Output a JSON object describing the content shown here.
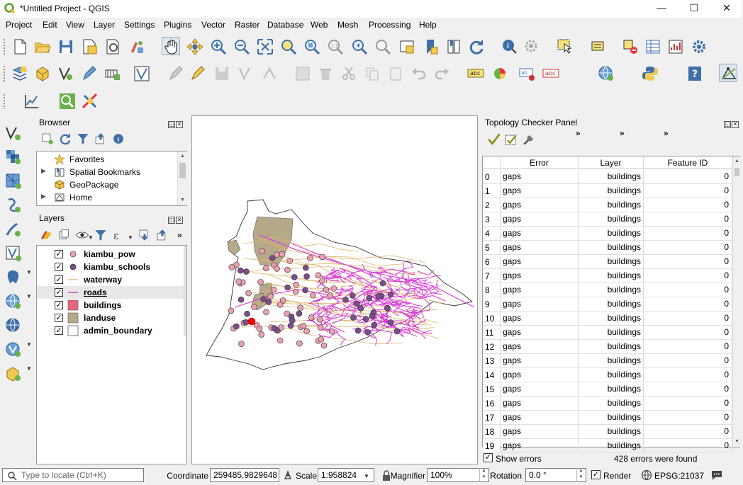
{
  "window": {
    "title": "*Untitled Project - QGIS",
    "minimize": "—",
    "maximize": "☐",
    "close": "✕"
  },
  "menu": [
    "Project",
    "Edit",
    "View",
    "Layer",
    "Settings",
    "Plugins",
    "Vector",
    "Raster",
    "Database",
    "Web",
    "Mesh",
    "Processing",
    "Help"
  ],
  "toolbar_overflow": "»",
  "browser": {
    "title": "Browser",
    "items": [
      {
        "label": "Favorites",
        "icon": "star-icon",
        "expandable": false
      },
      {
        "label": "Spatial Bookmarks",
        "icon": "bookmark-icon",
        "expandable": true
      },
      {
        "label": "GeoPackage",
        "icon": "geopackage-icon",
        "expandable": false
      },
      {
        "label": "Home",
        "icon": "home-icon",
        "expandable": true
      }
    ]
  },
  "layers": {
    "title": "Layers",
    "items": [
      {
        "label": "kiambu_pow",
        "checked": true,
        "symbol": "point",
        "color": "#e8a0b0"
      },
      {
        "label": "kiambu_schools",
        "checked": true,
        "symbol": "point",
        "color": "#7a4e8a"
      },
      {
        "label": "waterway",
        "checked": true,
        "symbol": "line",
        "color": "#e2b86a"
      },
      {
        "label": "roads",
        "checked": true,
        "symbol": "line",
        "color": "#c040c0",
        "selected": true
      },
      {
        "label": "buildings",
        "checked": true,
        "symbol": "fill",
        "color": "#e8667a"
      },
      {
        "label": "landuse",
        "checked": true,
        "symbol": "fill",
        "color": "#b5a98a"
      },
      {
        "label": "admin_boundary",
        "checked": true,
        "symbol": "fill",
        "color": "#ffffff"
      }
    ]
  },
  "topology": {
    "title": "Topology Checker Panel",
    "columns": [
      "Error",
      "Layer",
      "Feature ID"
    ],
    "rows": [
      {
        "n": "0",
        "error": "gaps",
        "layer": "buildings",
        "fid": "0"
      },
      {
        "n": "1",
        "error": "gaps",
        "layer": "buildings",
        "fid": "0"
      },
      {
        "n": "2",
        "error": "gaps",
        "layer": "buildings",
        "fid": "0"
      },
      {
        "n": "3",
        "error": "gaps",
        "layer": "buildings",
        "fid": "0"
      },
      {
        "n": "4",
        "error": "gaps",
        "layer": "buildings",
        "fid": "0"
      },
      {
        "n": "5",
        "error": "gaps",
        "layer": "buildings",
        "fid": "0"
      },
      {
        "n": "6",
        "error": "gaps",
        "layer": "buildings",
        "fid": "0"
      },
      {
        "n": "7",
        "error": "gaps",
        "layer": "buildings",
        "fid": "0"
      },
      {
        "n": "8",
        "error": "gaps",
        "layer": "buildings",
        "fid": "0"
      },
      {
        "n": "9",
        "error": "gaps",
        "layer": "buildings",
        "fid": "0"
      },
      {
        "n": "10",
        "error": "gaps",
        "layer": "buildings",
        "fid": "0"
      },
      {
        "n": "11",
        "error": "gaps",
        "layer": "buildings",
        "fid": "0"
      },
      {
        "n": "12",
        "error": "gaps",
        "layer": "buildings",
        "fid": "0"
      },
      {
        "n": "13",
        "error": "gaps",
        "layer": "buildings",
        "fid": "0"
      },
      {
        "n": "14",
        "error": "gaps",
        "layer": "buildings",
        "fid": "0"
      },
      {
        "n": "15",
        "error": "gaps",
        "layer": "buildings",
        "fid": "0"
      },
      {
        "n": "16",
        "error": "gaps",
        "layer": "buildings",
        "fid": "0"
      },
      {
        "n": "17",
        "error": "gaps",
        "layer": "buildings",
        "fid": "0"
      },
      {
        "n": "18",
        "error": "gaps",
        "layer": "buildings",
        "fid": "0"
      },
      {
        "n": "19",
        "error": "gaps",
        "layer": "buildings",
        "fid": "0"
      }
    ],
    "show_errors_label": "Show errors",
    "show_errors_checked": true,
    "summary": "428 errors were found"
  },
  "status": {
    "locate_placeholder": "Type to locate (Ctrl+K)",
    "coordinate_label": "Coordinate",
    "coordinate_value": "259485,9829648",
    "scale_label": "Scale",
    "scale_value": "1:958824",
    "magnifier_label": "Magnifier",
    "magnifier_value": "100%",
    "rotation_label": "Rotation",
    "rotation_value": "0.0 °",
    "render_label": "Render",
    "render_checked": true,
    "crs": "EPSG:21037"
  },
  "colors": {
    "roads": "#d838d8",
    "waterway": "#dfb56a",
    "landuse": "#b5a98a",
    "pow": "#e8a0b0",
    "schools": "#7a4e8a",
    "error_marker": "#ff0000"
  }
}
